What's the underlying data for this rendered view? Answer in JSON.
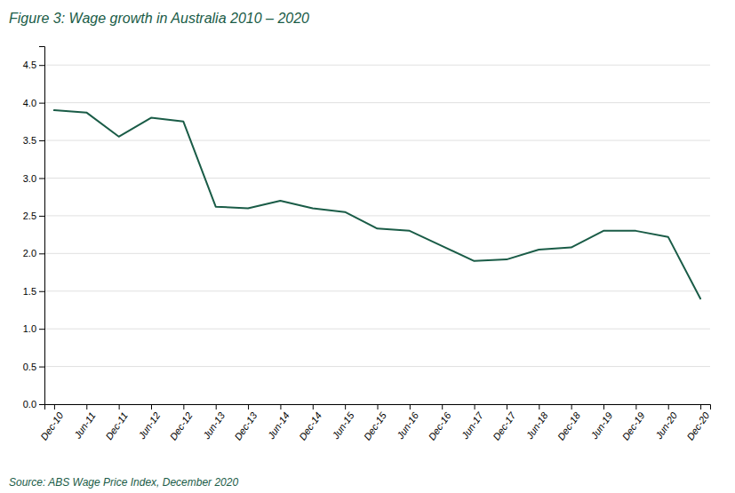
{
  "chart_data": {
    "type": "line",
    "title": "Figure 3: Wage growth in Australia 2010 – 2020",
    "source": "Source: ABS Wage Price Index, December 2020",
    "color": "#1a5c47",
    "categories": [
      "Dec-10",
      "Jun-11",
      "Dec-11",
      "Jun-12",
      "Dec-12",
      "Jun-13",
      "Dec-13",
      "Jun-14",
      "Dec-14",
      "Jun-15",
      "Dec-15",
      "Jun-16",
      "Dec-16",
      "Jun-17",
      "Dec-17",
      "Jun-18",
      "Dec-18",
      "Jun-19",
      "Dec-19",
      "Jun-20",
      "Dec-20"
    ],
    "values": [
      3.9,
      3.87,
      3.55,
      3.8,
      3.75,
      2.62,
      2.6,
      2.7,
      2.6,
      2.55,
      2.33,
      2.3,
      2.1,
      1.9,
      1.92,
      2.05,
      2.08,
      2.3,
      2.3,
      2.22,
      1.4
    ],
    "ylim": [
      0.0,
      4.75
    ],
    "yticks": [
      {
        "value": 0.0,
        "label": "0.0"
      },
      0.5,
      {
        "value": 1.0,
        "label": "1.0"
      },
      1.5,
      {
        "value": 2.0,
        "label": "2.0"
      },
      2.5,
      {
        "value": 3.0,
        "label": "3.0"
      },
      3.5,
      {
        "value": 4.0,
        "label": "4.0"
      },
      4.5
    ],
    "grid": true
  }
}
